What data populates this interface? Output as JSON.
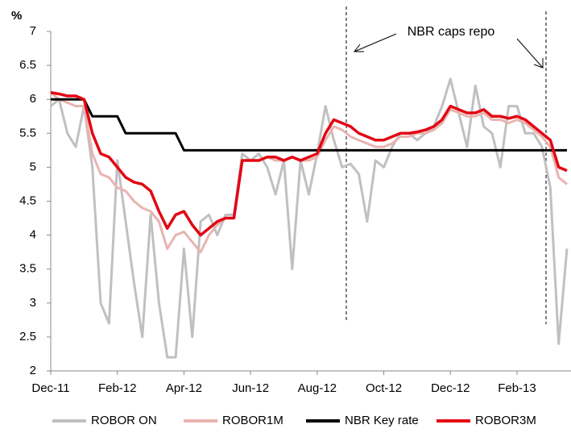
{
  "chart_data": {
    "type": "line",
    "ylabel": "%",
    "annotation": "NBR caps repo",
    "categories": [
      "Dec-11",
      null,
      null,
      null,
      null,
      null,
      null,
      null,
      "Feb-12",
      null,
      null,
      null,
      null,
      null,
      null,
      null,
      "Apr-12",
      null,
      null,
      null,
      null,
      null,
      null,
      null,
      "Jun-12",
      null,
      null,
      null,
      null,
      null,
      null,
      null,
      "Aug-12",
      null,
      null,
      null,
      null,
      null,
      null,
      null,
      "Oct-12",
      null,
      null,
      null,
      null,
      null,
      null,
      null,
      "Dec-12",
      null,
      null,
      null,
      null,
      null,
      null,
      null,
      "Feb-13",
      null,
      null,
      null,
      null,
      null,
      null
    ],
    "series": [
      {
        "name": "ROBOR ON",
        "color": "#c0c0c0",
        "values": [
          5.9,
          6.0,
          5.5,
          5.3,
          5.9,
          5.0,
          3.0,
          2.7,
          5.1,
          4.2,
          3.3,
          2.5,
          4.3,
          3.0,
          2.2,
          2.2,
          3.8,
          2.5,
          4.2,
          4.3,
          4.0,
          4.3,
          4.3,
          5.2,
          5.1,
          5.2,
          5.0,
          4.6,
          5.1,
          3.5,
          5.1,
          4.6,
          5.2,
          5.9,
          5.4,
          5.0,
          5.05,
          4.9,
          4.2,
          5.1,
          5.0,
          5.3,
          5.5,
          5.5,
          5.4,
          5.5,
          5.6,
          5.9,
          6.3,
          5.8,
          5.3,
          6.2,
          5.6,
          5.5,
          5.0,
          5.9,
          5.9,
          5.5,
          5.5,
          5.3,
          4.7,
          2.4,
          3.8
        ]
      },
      {
        "name": "ROBOR1M",
        "color": "#e8b4b0",
        "values": [
          6.1,
          6.0,
          5.95,
          5.9,
          5.9,
          5.2,
          4.9,
          4.85,
          4.7,
          4.65,
          4.5,
          4.4,
          4.35,
          4.2,
          3.8,
          4.0,
          4.05,
          3.9,
          3.75,
          4.0,
          4.15,
          4.25,
          4.25,
          5.1,
          5.1,
          5.1,
          5.15,
          5.1,
          5.1,
          5.15,
          5.1,
          5.1,
          5.15,
          5.4,
          5.6,
          5.55,
          5.45,
          5.4,
          5.35,
          5.3,
          5.3,
          5.35,
          5.45,
          5.45,
          5.5,
          5.5,
          5.55,
          5.65,
          5.85,
          5.8,
          5.75,
          5.75,
          5.8,
          5.7,
          5.7,
          5.65,
          5.7,
          5.65,
          5.55,
          5.45,
          5.3,
          4.85,
          4.75
        ]
      },
      {
        "name": "NBR Key rate",
        "color": "#000000",
        "values": [
          6,
          6,
          6,
          6,
          6,
          5.75,
          5.75,
          5.75,
          5.75,
          5.5,
          5.5,
          5.5,
          5.5,
          5.5,
          5.5,
          5.5,
          5.25,
          5.25,
          5.25,
          5.25,
          5.25,
          5.25,
          5.25,
          5.25,
          5.25,
          5.25,
          5.25,
          5.25,
          5.25,
          5.25,
          5.25,
          5.25,
          5.25,
          5.25,
          5.25,
          5.25,
          5.25,
          5.25,
          5.25,
          5.25,
          5.25,
          5.25,
          5.25,
          5.25,
          5.25,
          5.25,
          5.25,
          5.25,
          5.25,
          5.25,
          5.25,
          5.25,
          5.25,
          5.25,
          5.25,
          5.25,
          5.25,
          5.25,
          5.25,
          5.25,
          5.25,
          5.25,
          5.25
        ]
      },
      {
        "name": "ROBOR3M",
        "color": "#e30613",
        "values": [
          6.1,
          6.08,
          6.05,
          6.05,
          6.0,
          5.5,
          5.2,
          5.15,
          5.0,
          4.85,
          4.78,
          4.75,
          4.65,
          4.35,
          4.1,
          4.3,
          4.35,
          4.15,
          4.0,
          4.1,
          4.2,
          4.25,
          4.25,
          5.1,
          5.1,
          5.1,
          5.15,
          5.15,
          5.1,
          5.15,
          5.1,
          5.15,
          5.2,
          5.5,
          5.7,
          5.65,
          5.6,
          5.5,
          5.45,
          5.4,
          5.4,
          5.45,
          5.5,
          5.5,
          5.52,
          5.55,
          5.6,
          5.7,
          5.9,
          5.85,
          5.8,
          5.8,
          5.85,
          5.75,
          5.75,
          5.72,
          5.75,
          5.7,
          5.6,
          5.5,
          5.4,
          5.0,
          4.95
        ]
      }
    ],
    "ylim": [
      2,
      7
    ],
    "yticks": [
      2,
      2.5,
      3,
      3.5,
      4,
      4.5,
      5,
      5.5,
      6,
      6.5,
      7
    ],
    "grid": false,
    "legend": "bottom"
  }
}
